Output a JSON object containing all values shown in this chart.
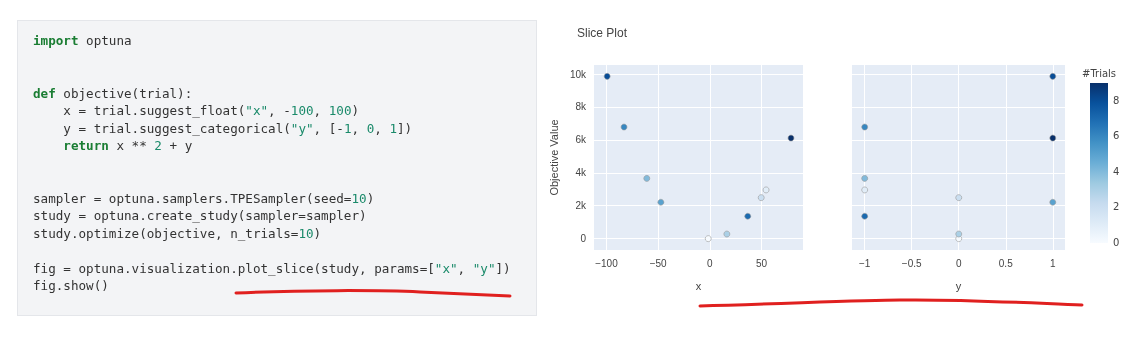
{
  "chart_data": [
    {
      "type": "other",
      "annotations": [
        "import optuna",
        "def objective(trial):\n    x = trial.suggest_float(\"x\", -100, 100)\n    y = trial.suggest_categorical(\"y\", [-1, 0, 1])\n    return x ** 2 + y",
        "sampler = optuna.samplers.TPESampler(seed=10)\nstudy = optuna.create_study(sampler=sampler)\nstudy.optimize(objective, n_trials=10)",
        "fig = optuna.visualization.plot_slice(study, params=[\"x\", \"y\"])\nfig.show()"
      ]
    },
    {
      "type": "scatter",
      "title": "Slice Plot",
      "xlabel": "x",
      "ylabel": "Objective Value",
      "x": [
        -1.6,
        54.3,
        49.6,
        16.4,
        -61,
        -47.4,
        -83,
        36.6,
        -99.3,
        78.4
      ],
      "values": [
        0,
        2960,
        2490,
        280,
        3660,
        2210,
        6780,
        1360,
        9860,
        6110
      ],
      "colors": [
        "#f7fbff",
        "#e1edf8",
        "#cbdff1",
        "#abd0e6",
        "#82badb",
        "#59a2cf",
        "#3787c0",
        "#1b6aaf",
        "#084d97",
        "#08306b"
      ],
      "xlim": [
        -112,
        90
      ],
      "xticks": [
        -100,
        -50,
        0,
        50
      ],
      "ylim": [
        -690,
        10550
      ],
      "yticks": [
        0,
        {
          "value": 2000,
          "label": "2k"
        },
        {
          "value": 4000,
          "label": "4k"
        },
        {
          "value": 6000,
          "label": "6k"
        },
        {
          "value": 8000,
          "label": "8k"
        },
        {
          "value": 10000,
          "label": "10k"
        }
      ],
      "grid": true,
      "marker": "circle"
    },
    {
      "type": "scatter",
      "xlabel": "y",
      "clabel": "#Trials",
      "x": [
        0,
        -1,
        0,
        0,
        -1,
        1,
        -1,
        -1,
        1,
        1
      ],
      "values": [
        0,
        2960,
        2490,
        280,
        3660,
        2210,
        6780,
        1360,
        9860,
        6110
      ],
      "cvalues": [
        0,
        1,
        2,
        3,
        4,
        5,
        6,
        7,
        8,
        9
      ],
      "xlim": [
        -1.135,
        1.13
      ],
      "xticks": [
        -1,
        -0.5,
        0,
        0.5,
        1
      ],
      "ylim": [
        -690,
        10550
      ],
      "yticks": [
        {
          "value": 0,
          "label": null
        },
        {
          "value": 2000,
          "label": null
        },
        {
          "value": 4000,
          "label": null
        },
        {
          "value": 6000,
          "label": null
        },
        {
          "value": 8000,
          "label": null
        },
        {
          "value": 10000,
          "label": null
        }
      ],
      "clim": [
        0,
        9
      ],
      "cticks": [
        0,
        2,
        4,
        6,
        8
      ],
      "grid": true,
      "marker": "circle",
      "tick_labels": "x"
    }
  ]
}
